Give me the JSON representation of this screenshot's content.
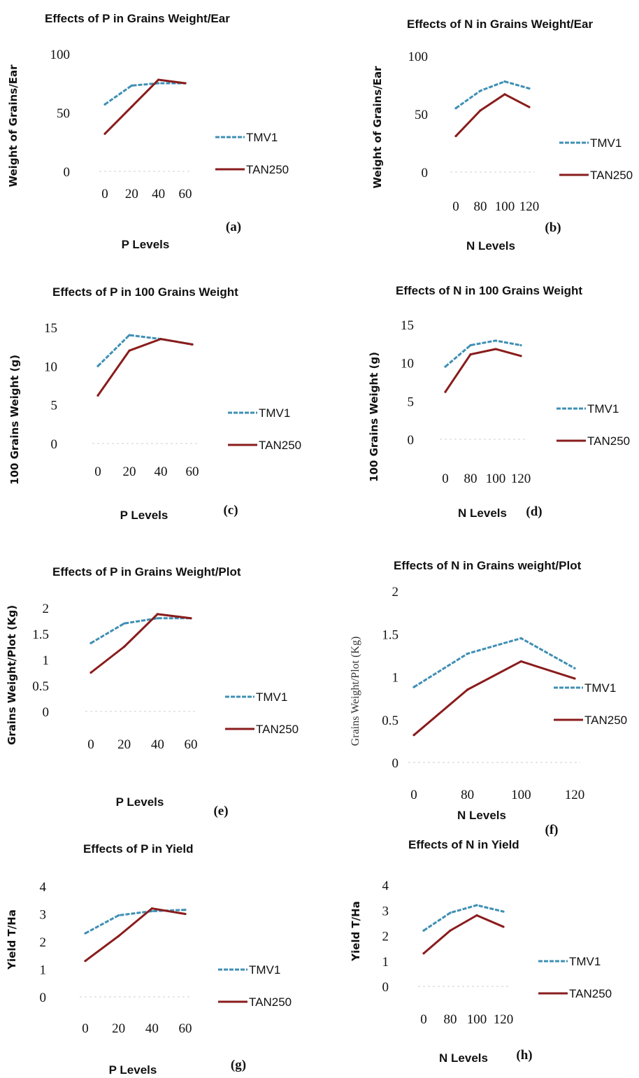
{
  "colors": {
    "TMV1": "#3f8fb4",
    "TAN250": "#8a1c1c"
  },
  "chart_data": [
    {
      "type": "line",
      "panel": "(a)",
      "title": "Effects of P in Grains Weight/Ear",
      "xlabel": "P Levels",
      "ylabel": "Weight of Grains/Ear",
      "categories": [
        "0",
        "20",
        "40",
        "60"
      ],
      "yticks": [
        "0",
        "50",
        "100"
      ],
      "ylim": [
        0,
        100
      ],
      "series": [
        {
          "name": "TMV1",
          "values": [
            57,
            73,
            75,
            75
          ]
        },
        {
          "name": "TAN250",
          "values": [
            32,
            55,
            78,
            75
          ]
        }
      ]
    },
    {
      "type": "line",
      "panel": "(b)",
      "title": "Effects of N in Grains Weight/Ear",
      "xlabel": "N Levels",
      "ylabel": "Weight of Grains/Ear",
      "categories": [
        "0",
        "80",
        "100",
        "120"
      ],
      "yticks": [
        "0",
        "50",
        "100"
      ],
      "ylim": [
        0,
        100
      ],
      "series": [
        {
          "name": "TMV1",
          "values": [
            55,
            70,
            78,
            72
          ]
        },
        {
          "name": "TAN250",
          "values": [
            31,
            53,
            67,
            56
          ]
        }
      ]
    },
    {
      "type": "line",
      "panel": "(c)",
      "title": "Effects of P in 100 Grains Weight",
      "xlabel": "P Levels",
      "ylabel": "100 Grains Weight (g)",
      "categories": [
        "0",
        "20",
        "40",
        "60"
      ],
      "yticks": [
        "0",
        "5",
        "10",
        "15"
      ],
      "ylim": [
        0,
        15
      ],
      "series": [
        {
          "name": "TMV1",
          "values": [
            10,
            14,
            13.5,
            12.8
          ]
        },
        {
          "name": "TAN250",
          "values": [
            6.2,
            12,
            13.5,
            12.8
          ]
        }
      ]
    },
    {
      "type": "line",
      "panel": "(d)",
      "title": "Effects of N in 100 Grains Weight",
      "xlabel": "N Levels",
      "ylabel": "100 Grains Weight (g)",
      "categories": [
        "0",
        "80",
        "100",
        "120"
      ],
      "yticks": [
        "0",
        "5",
        "10",
        "15"
      ],
      "ylim": [
        0,
        15
      ],
      "series": [
        {
          "name": "TMV1",
          "values": [
            9.5,
            12.3,
            12.9,
            12.3
          ]
        },
        {
          "name": "TAN250",
          "values": [
            6.2,
            11.1,
            11.8,
            10.9
          ]
        }
      ]
    },
    {
      "type": "line",
      "panel": "(e)",
      "title": "Effects of P in Grains Weight/Plot",
      "xlabel": "P Levels",
      "ylabel": "Grains Weight/Plot (Kg)",
      "categories": [
        "0",
        "20",
        "40",
        "60"
      ],
      "yticks": [
        "0",
        "0.5",
        "1",
        "1.5",
        "2"
      ],
      "ylim": [
        0,
        2
      ],
      "series": [
        {
          "name": "TMV1",
          "values": [
            1.32,
            1.7,
            1.8,
            1.8
          ]
        },
        {
          "name": "TAN250",
          "values": [
            0.75,
            1.25,
            1.88,
            1.8
          ]
        }
      ]
    },
    {
      "type": "line",
      "panel": "(f)",
      "title": "Effects of N in Grains weight/Plot",
      "xlabel": "N Levels",
      "ylabel": "Grains Weight/Plot (Kg)",
      "categories": [
        "0",
        "80",
        "100",
        "120"
      ],
      "yticks": [
        "0",
        "0.5",
        "1",
        "1.5",
        "2"
      ],
      "ylim": [
        0,
        2
      ],
      "series": [
        {
          "name": "TMV1",
          "values": [
            0.88,
            1.27,
            1.45,
            1.1
          ]
        },
        {
          "name": "TAN250",
          "values": [
            0.32,
            0.85,
            1.18,
            0.98
          ]
        }
      ]
    },
    {
      "type": "line",
      "panel": "(g)",
      "title": "Effects of P in Yield",
      "xlabel": "P Levels",
      "ylabel": "Yield T/Ha",
      "categories": [
        "0",
        "20",
        "40",
        "60"
      ],
      "yticks": [
        "0",
        "1",
        "2",
        "3",
        "4"
      ],
      "ylim": [
        0,
        4
      ],
      "series": [
        {
          "name": "TMV1",
          "values": [
            2.3,
            2.95,
            3.1,
            3.15
          ]
        },
        {
          "name": "TAN250",
          "values": [
            1.3,
            2.2,
            3.2,
            3.0
          ]
        }
      ]
    },
    {
      "type": "line",
      "panel": "(h)",
      "title": "Effects of N in Yield",
      "xlabel": "N Levels",
      "ylabel": "Yield T/Ha",
      "categories": [
        "0",
        "80",
        "100",
        "120"
      ],
      "yticks": [
        "0",
        "1",
        "2",
        "3",
        "4"
      ],
      "ylim": [
        0,
        4
      ],
      "series": [
        {
          "name": "TMV1",
          "values": [
            2.2,
            2.9,
            3.2,
            2.95
          ]
        },
        {
          "name": "TAN250",
          "values": [
            1.3,
            2.2,
            2.8,
            2.35
          ]
        }
      ]
    }
  ]
}
